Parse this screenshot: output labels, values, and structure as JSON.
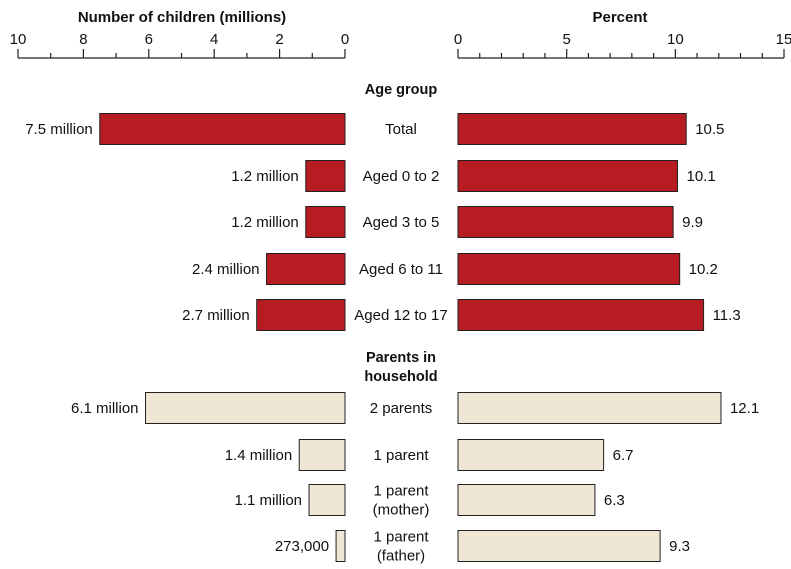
{
  "chart_data": {
    "type": "bar",
    "orientation": "horizontal",
    "left_panel": {
      "title": "Number of children (millions)",
      "ticks": [
        "10",
        "8",
        "6",
        "4",
        "2",
        "0"
      ],
      "xlim": [
        10,
        0
      ],
      "unit": "millions"
    },
    "right_panel": {
      "title": "Percent",
      "ticks": [
        "0",
        "5",
        "10",
        "15"
      ],
      "xlim": [
        0,
        15
      ],
      "unit": "percent"
    },
    "colors": {
      "age_group": "#B71C22",
      "parents": "#EFE6D6",
      "bar_stroke": "#222222"
    },
    "groups": [
      {
        "title": [
          "Age group"
        ],
        "color_key": "age_group",
        "rows": [
          {
            "category": [
              "Total"
            ],
            "count": 7.5,
            "count_label": "7.5 million",
            "percent": 10.5,
            "percent_label": "10.5"
          },
          {
            "category": [
              "Aged 0 to 2"
            ],
            "count": 1.2,
            "count_label": "1.2 million",
            "percent": 10.1,
            "percent_label": "10.1"
          },
          {
            "category": [
              "Aged 3 to 5"
            ],
            "count": 1.2,
            "count_label": "1.2 million",
            "percent": 9.9,
            "percent_label": "9.9"
          },
          {
            "category": [
              "Aged 6 to 11"
            ],
            "count": 2.4,
            "count_label": "2.4 million",
            "percent": 10.2,
            "percent_label": "10.2"
          },
          {
            "category": [
              "Aged 12 to 17"
            ],
            "count": 2.7,
            "count_label": "2.7 million",
            "percent": 11.3,
            "percent_label": "11.3"
          }
        ]
      },
      {
        "title": [
          "Parents in",
          "household"
        ],
        "color_key": "parents",
        "rows": [
          {
            "category": [
              "2 parents"
            ],
            "count": 6.1,
            "count_label": "6.1 million",
            "percent": 12.1,
            "percent_label": "12.1"
          },
          {
            "category": [
              "1 parent"
            ],
            "count": 1.4,
            "count_label": "1.4 million",
            "percent": 6.7,
            "percent_label": "6.7"
          },
          {
            "category": [
              "1 parent",
              "(mother)"
            ],
            "count": 1.1,
            "count_label": "1.1 million",
            "percent": 6.3,
            "percent_label": "6.3"
          },
          {
            "category": [
              "1 parent",
              "(father)"
            ],
            "count": 0.273,
            "count_label": "273,000",
            "percent": 9.3,
            "percent_label": "9.3"
          }
        ]
      }
    ]
  }
}
